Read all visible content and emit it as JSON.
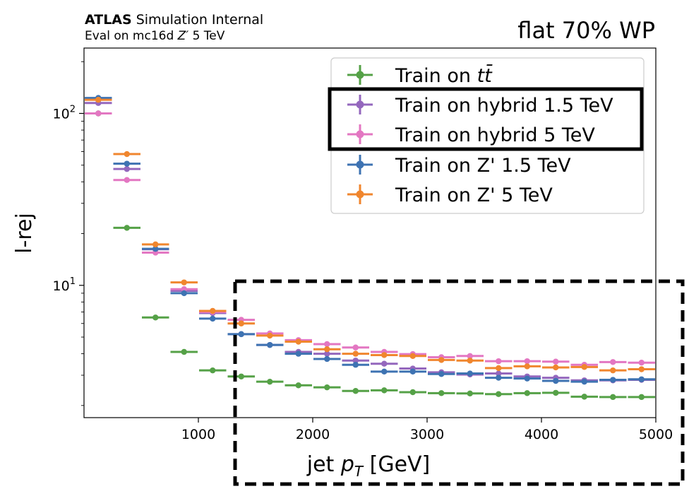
{
  "header": {
    "experiment": "ATLAS",
    "status": "Simulation Internal",
    "eval_prefix": "Eval on mc16d ",
    "eval_symbol": "Z′",
    "eval_suffix": " 5 TeV",
    "working_point": "flat 70% WP"
  },
  "chart_data": {
    "type": "scatter",
    "title": "flat 70% WP",
    "xlabel_text": "jet ",
    "xlabel_var": "p",
    "xlabel_sub": "T",
    "xlabel_unit": " [GeV]",
    "ylabel": "l-rej",
    "xlim": [
      0,
      5000
    ],
    "ylim": [
      1.7,
      240
    ],
    "yscale": "log",
    "grid": false,
    "legend_position": "top-right",
    "x_ticks": [
      1000,
      2000,
      3000,
      4000,
      5000
    ],
    "x_tick_labels": [
      "1000",
      "2000",
      "3000",
      "4000",
      "5000"
    ],
    "y_major_ticks": [
      {
        "value": 10,
        "base": "10",
        "exp": "1"
      },
      {
        "value": 100,
        "base": "10",
        "exp": "2"
      }
    ],
    "bins": [
      [
        0,
        250
      ],
      [
        250,
        500
      ],
      [
        500,
        750
      ],
      [
        750,
        1000
      ],
      [
        1000,
        1250
      ],
      [
        1250,
        1500
      ],
      [
        1500,
        1750
      ],
      [
        1750,
        2000
      ],
      [
        2000,
        2250
      ],
      [
        2250,
        2500
      ],
      [
        2500,
        2750
      ],
      [
        2750,
        3000
      ],
      [
        3000,
        3250
      ],
      [
        3250,
        3500
      ],
      [
        3500,
        3750
      ],
      [
        3750,
        4000
      ],
      [
        4000,
        4250
      ],
      [
        4250,
        4500
      ],
      [
        4500,
        4750
      ],
      [
        4750,
        5000
      ]
    ],
    "series": [
      {
        "legend_text": "Train on ",
        "legend_math": "tt̄",
        "color": "#55a147",
        "values": [
          100,
          21.6,
          6.5,
          4.1,
          3.2,
          2.95,
          2.75,
          2.62,
          2.55,
          2.43,
          2.45,
          2.39,
          2.36,
          2.35,
          2.33,
          2.36,
          2.37,
          2.25,
          2.24,
          2.24
        ]
      },
      {
        "legend_text": "Train on hybrid 1.5 TeV",
        "color": "#9467bd",
        "values": [
          115,
          47.5,
          16.2,
          9.3,
          6.9,
          5.2,
          4.5,
          4.1,
          4.0,
          3.65,
          3.5,
          3.28,
          3.12,
          3.03,
          3.07,
          2.95,
          2.9,
          2.8,
          2.8,
          2.82
        ]
      },
      {
        "legend_text": "Train on hybrid 5 TeV",
        "color": "#e377c2",
        "values": [
          100,
          41,
          15.5,
          9.5,
          7.0,
          6.3,
          5.25,
          4.8,
          4.55,
          4.35,
          4.1,
          3.98,
          3.82,
          3.88,
          3.62,
          3.62,
          3.6,
          3.45,
          3.58,
          3.55
        ]
      },
      {
        "legend_text": "Train on Z' 1.5 TeV",
        "color": "#3e73b2",
        "values": [
          123,
          51,
          16.3,
          9.0,
          6.4,
          5.2,
          4.5,
          4.0,
          3.73,
          3.45,
          3.15,
          3.15,
          3.05,
          3.07,
          2.9,
          2.87,
          2.78,
          2.75,
          2.82,
          2.84
        ]
      },
      {
        "legend_text": "Train on Z' 5 TeV",
        "color": "#f0862e",
        "values": [
          120,
          58,
          17.3,
          10.4,
          7.1,
          6.0,
          5.1,
          4.7,
          4.25,
          4.0,
          3.93,
          3.88,
          3.68,
          3.65,
          3.3,
          3.38,
          3.33,
          3.35,
          3.2,
          3.25
        ]
      }
    ]
  }
}
